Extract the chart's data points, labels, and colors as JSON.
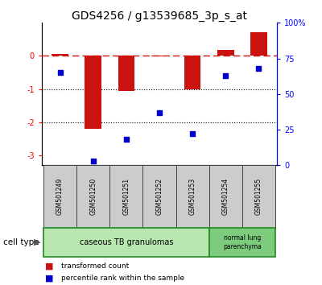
{
  "title": "GDS4256 / g13539685_3p_s_at",
  "samples": [
    "GSM501249",
    "GSM501250",
    "GSM501251",
    "GSM501252",
    "GSM501253",
    "GSM501254",
    "GSM501255"
  ],
  "red_values": [
    0.05,
    -2.2,
    -1.05,
    -0.02,
    -1.0,
    0.18,
    0.72
  ],
  "blue_values": [
    65,
    3,
    18,
    37,
    22,
    63,
    68
  ],
  "ylim_left": [
    -3.3,
    1.0
  ],
  "ylim_right": [
    0,
    100
  ],
  "yticks_left": [
    0,
    -1,
    -2,
    -3
  ],
  "yticks_right": [
    0,
    25,
    50,
    75,
    100
  ],
  "ytick_labels_right": [
    "0",
    "25",
    "50",
    "75",
    "100%"
  ],
  "hline_y": 0,
  "dotted_lines": [
    -1,
    -2
  ],
  "bar_color": "#cc1111",
  "dot_color": "#0000cc",
  "bar_width": 0.5,
  "group1_label": "caseous TB granulomas",
  "group2_label": "normal lung\nparenchyma",
  "group1_indices": [
    0,
    1,
    2,
    3,
    4
  ],
  "group2_indices": [
    5,
    6
  ],
  "group1_color": "#b8e8b0",
  "group2_color": "#7dcc7d",
  "cell_type_label": "cell type",
  "legend1_label": "transformed count",
  "legend2_label": "percentile rank within the sample",
  "title_fontsize": 10,
  "sample_fontsize": 5.5,
  "label_fontsize": 7,
  "tick_fontsize": 7
}
